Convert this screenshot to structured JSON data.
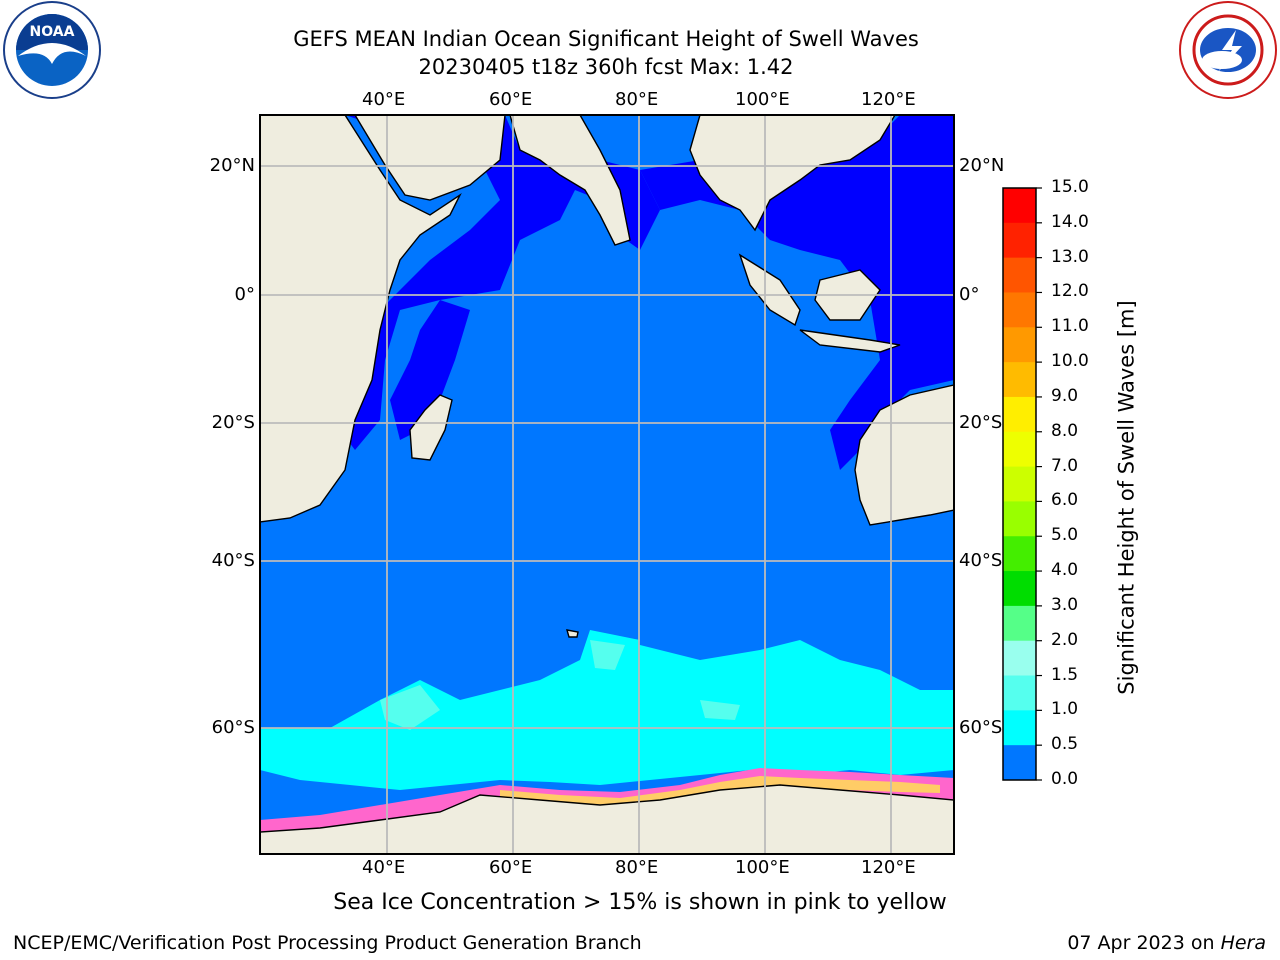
{
  "title": {
    "line1": "GEFS MEAN Indian Ocean Significant Height of Swell Waves",
    "line2": "20230405 t18z 360h fcst   Max: 1.42"
  },
  "map": {
    "lon_labels": [
      "40°E",
      "60°E",
      "80°E",
      "100°E",
      "120°E"
    ],
    "lat_labels": [
      "20°N",
      "0°",
      "20°S",
      "40°S",
      "60°S"
    ],
    "lon_range": [
      20,
      130
    ],
    "lat_range": [
      -72,
      28
    ],
    "colors": {
      "land": "#efeddf",
      "swell_0_0.5": "#0000ff",
      "swell_0.5_1.0": "#0077ff",
      "swell_1.0_1.5": "#00ffff",
      "swell_1.5_2.0": "#55ffee",
      "sea_ice": "#ff66cc",
      "grid": "#bbbbbb"
    }
  },
  "colorbar": {
    "label": "Significant Height of Swell Waves [m]",
    "ticks": [
      "15.0",
      "14.0",
      "13.0",
      "12.0",
      "11.0",
      "10.0",
      "9.0",
      "8.0",
      "7.0",
      "6.0",
      "5.0",
      "4.0",
      "3.0",
      "2.0",
      "1.5",
      "1.0",
      "0.5",
      "0.0"
    ],
    "colors": [
      "#ff0000",
      "#ff2200",
      "#ff5500",
      "#ff7700",
      "#ff9900",
      "#ffbb00",
      "#ffee00",
      "#eeff00",
      "#ccff00",
      "#99ff00",
      "#44ee00",
      "#00dd00",
      "#55ff88",
      "#99ffee",
      "#55ffee",
      "#00ffff",
      "#0077ff",
      "#0000ff"
    ]
  },
  "caption": "Sea Ice Concentration > 15% is shown in pink to yellow",
  "footer": {
    "left": "NCEP/EMC/Verification Post Processing Product Generation Branch",
    "right_date": "07 Apr 2023 on ",
    "right_host": "Hera"
  },
  "logos": {
    "left": "NOAA",
    "right": "NATIONAL WEATHER SERVICE"
  }
}
